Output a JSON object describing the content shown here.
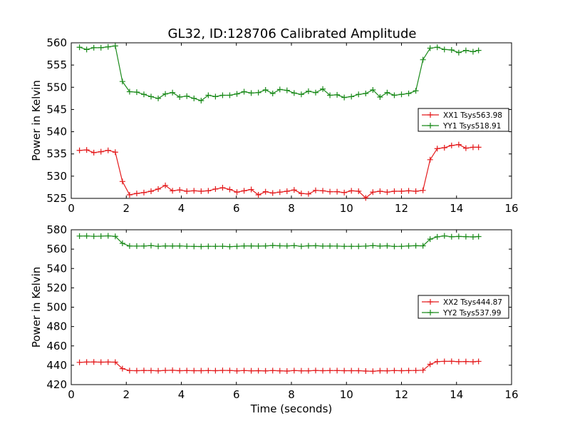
{
  "figure": {
    "title": "GL32, ID:128706 Calibrated Amplitude",
    "background": "#ffffff"
  },
  "chart_data": [
    {
      "type": "line",
      "title": "GL32, ID:128706 Calibrated Amplitude",
      "xlabel": "",
      "ylabel": "Power in Kelvin",
      "xlim": [
        0,
        16
      ],
      "ylim": [
        525,
        560
      ],
      "x_ticks": [
        "0",
        "2",
        "4",
        "6",
        "8",
        "10",
        "12",
        "14",
        "16"
      ],
      "y_ticks": [
        "525",
        "530",
        "535",
        "540",
        "545",
        "550",
        "555",
        "560"
      ],
      "grid": false,
      "legend_position": "center-right",
      "marker": "plus",
      "x": [
        0.3,
        0.56,
        0.82,
        1.08,
        1.34,
        1.6,
        1.86,
        2.12,
        2.38,
        2.64,
        2.9,
        3.16,
        3.42,
        3.68,
        3.94,
        4.2,
        4.46,
        4.72,
        4.98,
        5.24,
        5.5,
        5.76,
        6.02,
        6.28,
        6.54,
        6.8,
        7.06,
        7.32,
        7.58,
        7.84,
        8.1,
        8.36,
        8.62,
        8.88,
        9.14,
        9.4,
        9.66,
        9.92,
        10.18,
        10.44,
        10.7,
        10.96,
        11.22,
        11.48,
        11.74,
        12.0,
        12.26,
        12.52,
        12.78,
        13.04,
        13.3,
        13.56,
        13.82,
        14.08,
        14.34,
        14.6,
        14.8
      ],
      "series": [
        {
          "name": "XX1 Tsys563.98",
          "color": "#e41a1c",
          "values": [
            535.8,
            535.9,
            535.3,
            535.5,
            535.8,
            535.4,
            528.8,
            525.8,
            526.1,
            526.3,
            526.6,
            527.1,
            527.9,
            526.7,
            526.9,
            526.6,
            526.7,
            526.6,
            526.7,
            527.1,
            527.4,
            527.0,
            526.4,
            526.7,
            527.0,
            525.8,
            526.5,
            526.2,
            526.4,
            526.6,
            526.9,
            526.1,
            526.0,
            526.8,
            526.7,
            526.5,
            526.5,
            526.3,
            526.7,
            526.6,
            525.1,
            526.4,
            526.6,
            526.4,
            526.6,
            526.6,
            526.7,
            526.6,
            526.8,
            533.7,
            536.2,
            536.4,
            536.9,
            537.1,
            536.3,
            536.5,
            536.5
          ],
          "marker_color": "#e41a1c"
        },
        {
          "name": "YY1 Tsys518.91",
          "color": "#1a8a1a",
          "values": [
            559.0,
            558.5,
            558.9,
            558.9,
            559.1,
            559.3,
            551.3,
            549.0,
            548.9,
            548.4,
            547.9,
            547.5,
            548.5,
            548.8,
            547.8,
            548.0,
            547.5,
            547.0,
            548.2,
            547.9,
            548.2,
            548.2,
            548.5,
            549.0,
            548.7,
            548.8,
            549.4,
            548.6,
            549.5,
            549.3,
            548.7,
            548.4,
            549.1,
            548.8,
            549.6,
            548.2,
            548.3,
            547.7,
            547.9,
            548.4,
            548.6,
            549.4,
            547.8,
            548.8,
            548.2,
            548.4,
            548.6,
            549.2,
            556.2,
            558.8,
            559.0,
            558.5,
            558.4,
            557.8,
            558.3,
            558.0,
            558.3
          ]
        }
      ]
    },
    {
      "type": "line",
      "title": "",
      "xlabel": "Time (seconds)",
      "ylabel": "Power in Kelvin",
      "xlim": [
        0,
        16
      ],
      "ylim": [
        420,
        580
      ],
      "x_ticks": [
        "0",
        "2",
        "4",
        "6",
        "8",
        "10",
        "12",
        "14",
        "16"
      ],
      "y_ticks": [
        "420",
        "440",
        "460",
        "480",
        "500",
        "520",
        "540",
        "560",
        "580"
      ],
      "grid": false,
      "legend_position": "center-right",
      "marker": "plus",
      "x": [
        0.3,
        0.56,
        0.82,
        1.08,
        1.34,
        1.6,
        1.86,
        2.12,
        2.38,
        2.64,
        2.9,
        3.16,
        3.42,
        3.68,
        3.94,
        4.2,
        4.46,
        4.72,
        4.98,
        5.24,
        5.5,
        5.76,
        6.02,
        6.28,
        6.54,
        6.8,
        7.06,
        7.32,
        7.58,
        7.84,
        8.1,
        8.36,
        8.62,
        8.88,
        9.14,
        9.4,
        9.66,
        9.92,
        10.18,
        10.44,
        10.7,
        10.96,
        11.22,
        11.48,
        11.74,
        12.0,
        12.26,
        12.52,
        12.78,
        13.04,
        13.3,
        13.56,
        13.82,
        14.08,
        14.34,
        14.6,
        14.8
      ],
      "series": [
        {
          "name": "XX2 Tsys444.87",
          "color": "#e41a1c",
          "values": [
            443.0,
            443.3,
            443.4,
            443.2,
            443.3,
            443.2,
            436.5,
            434.5,
            434.4,
            434.6,
            434.5,
            434.3,
            434.7,
            434.8,
            434.4,
            434.5,
            434.4,
            434.4,
            434.5,
            434.4,
            434.7,
            434.6,
            434.2,
            434.5,
            434.3,
            434.4,
            434.2,
            434.5,
            434.3,
            434.0,
            434.5,
            434.3,
            434.3,
            434.6,
            434.4,
            434.5,
            434.5,
            434.4,
            434.4,
            434.4,
            434.0,
            433.8,
            434.4,
            434.3,
            434.5,
            434.4,
            434.5,
            434.6,
            434.8,
            441.0,
            443.8,
            444.0,
            444.1,
            443.7,
            443.9,
            443.6,
            444.0
          ]
        },
        {
          "name": "YY2 Tsys537.99",
          "color": "#1a8a1a",
          "values": [
            573.5,
            573.6,
            573.3,
            573.4,
            573.7,
            573.2,
            566.0,
            563.2,
            563.1,
            563.2,
            563.6,
            562.9,
            563.3,
            563.2,
            563.3,
            563.0,
            562.8,
            562.7,
            562.9,
            562.9,
            563.0,
            562.6,
            562.9,
            563.3,
            563.3,
            563.1,
            563.3,
            563.8,
            563.4,
            563.3,
            563.6,
            562.9,
            563.4,
            563.5,
            563.1,
            563.2,
            563.1,
            562.9,
            562.9,
            562.9,
            563.1,
            563.6,
            563.1,
            563.4,
            562.8,
            562.9,
            563.3,
            563.5,
            563.4,
            570.3,
            572.7,
            573.7,
            572.8,
            573.1,
            572.9,
            572.6,
            573.0
          ]
        }
      ]
    }
  ]
}
